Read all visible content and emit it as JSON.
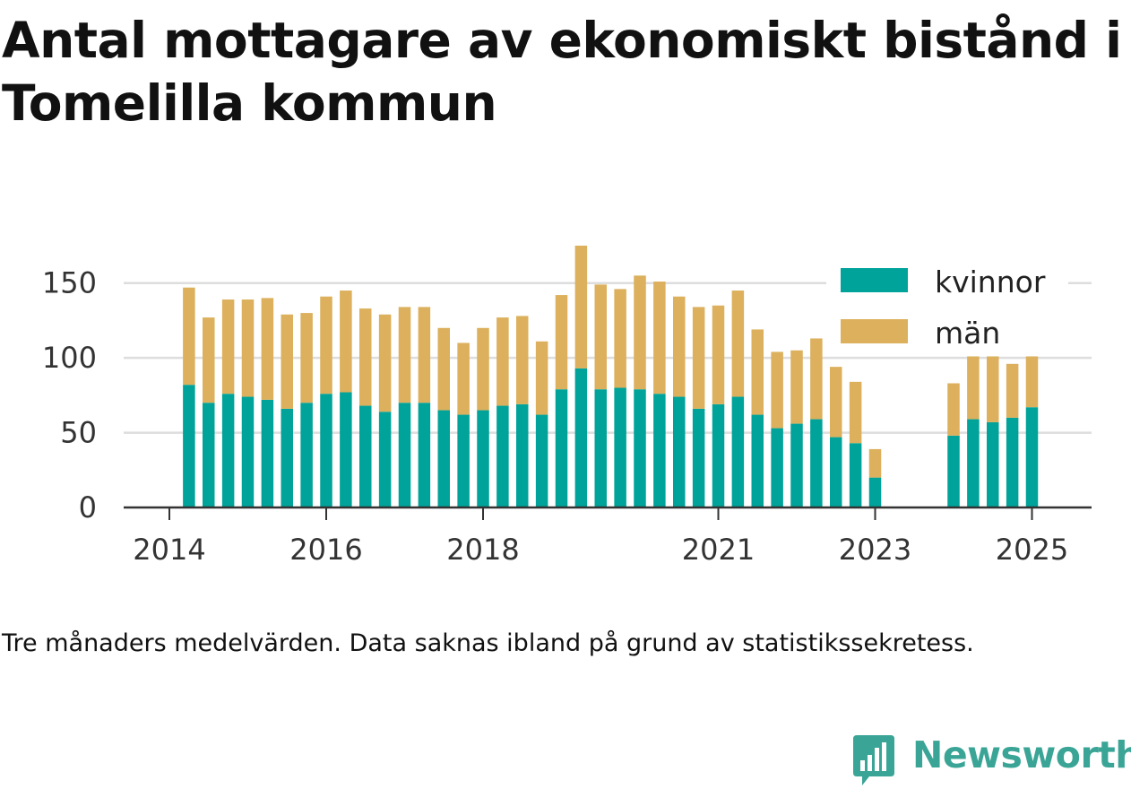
{
  "title": "Antal mottagare av ekonomiskt bistånd i Tomelilla kommun",
  "note": "Tre månaders medelvärden. Data saknas ibland på grund av statistikssekretess.",
  "brand": {
    "name": "Newsworthy",
    "icon": "newsworthy-logo-icon",
    "color": "#3aa596"
  },
  "chart_data": {
    "type": "bar",
    "stacked": true,
    "title": "",
    "xlabel": "",
    "ylabel": "",
    "ylim": [
      0,
      175
    ],
    "yticks": [
      0,
      50,
      100,
      150
    ],
    "xticks": [
      {
        "label": "2014",
        "value": 2014.0
      },
      {
        "label": "2016",
        "value": 2016.0
      },
      {
        "label": "2018",
        "value": 2018.0
      },
      {
        "label": "2021",
        "value": 2021.0
      },
      {
        "label": "2023",
        "value": 2023.0
      },
      {
        "label": "2025",
        "value": 2025.0
      }
    ],
    "grid": true,
    "legend_position": "top-right",
    "x": [
      2014.25,
      2014.5,
      2014.75,
      2015.0,
      2015.25,
      2015.5,
      2015.75,
      2016.0,
      2016.25,
      2016.5,
      2016.75,
      2017.0,
      2017.25,
      2017.5,
      2017.75,
      2018.0,
      2018.25,
      2018.5,
      2018.75,
      2019.0,
      2019.25,
      2019.5,
      2019.75,
      2020.0,
      2020.25,
      2020.5,
      2020.75,
      2021.0,
      2021.25,
      2021.5,
      2021.75,
      2022.0,
      2022.25,
      2022.5,
      2022.75,
      2023.0,
      2024.0,
      2024.25,
      2024.5,
      2024.75,
      2025.0
    ],
    "series": [
      {
        "name": "kvinnor",
        "color": "#00a39a",
        "values": [
          82,
          70,
          76,
          74,
          72,
          66,
          70,
          76,
          77,
          68,
          64,
          70,
          70,
          65,
          62,
          65,
          68,
          69,
          62,
          79,
          93,
          79,
          80,
          79,
          76,
          74,
          66,
          69,
          74,
          62,
          53,
          56,
          59,
          47,
          43,
          20,
          48,
          59,
          57,
          60,
          67
        ]
      },
      {
        "name": "män",
        "color": "#dcb05c",
        "values": [
          65,
          57,
          63,
          65,
          68,
          63,
          60,
          65,
          68,
          65,
          65,
          64,
          64,
          55,
          48,
          55,
          59,
          59,
          49,
          63,
          82,
          70,
          66,
          76,
          75,
          67,
          68,
          66,
          71,
          57,
          51,
          49,
          54,
          47,
          41,
          19,
          35,
          42,
          44,
          36,
          34
        ]
      }
    ]
  }
}
